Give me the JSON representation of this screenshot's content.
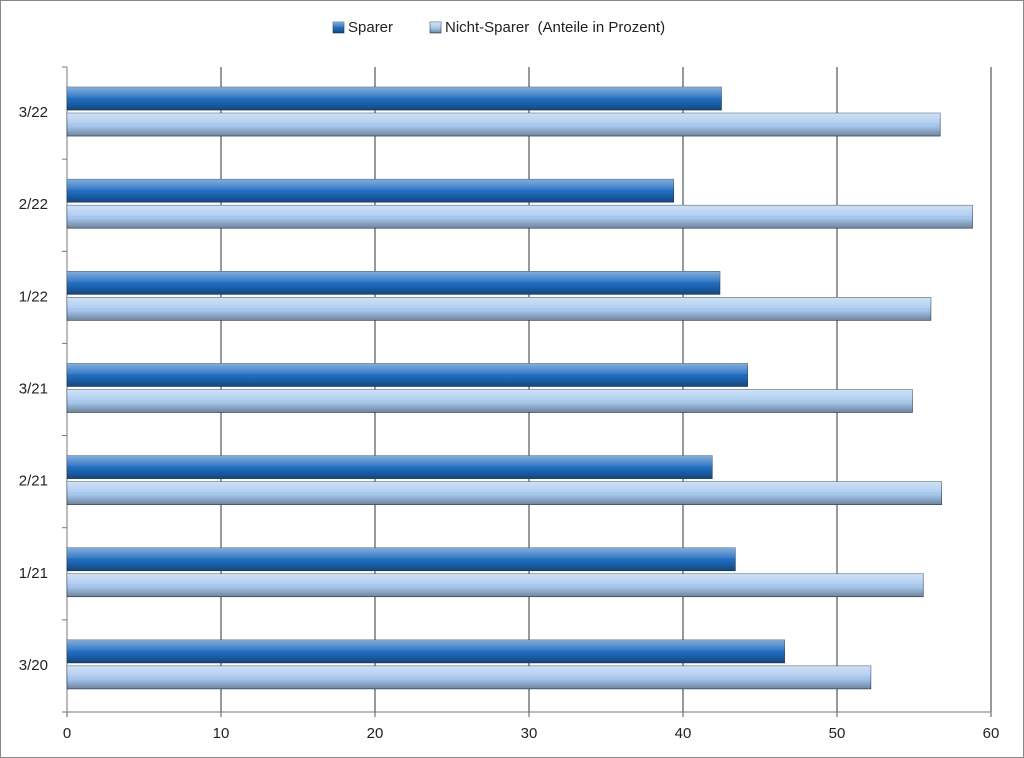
{
  "chart_data": {
    "type": "bar",
    "orientation": "horizontal",
    "categories": [
      "3/20",
      "1/21",
      "2/21",
      "3/21",
      "1/22",
      "2/22",
      "3/22"
    ],
    "series": [
      {
        "name": "Sparer",
        "color": "#1f6cc0",
        "values": [
          46.6,
          43.4,
          41.9,
          44.2,
          42.4,
          39.4,
          42.5
        ]
      },
      {
        "name": "Nicht-Sparer  (Anteile in Prozent)",
        "color": "#a8c9ef",
        "values": [
          52.2,
          55.6,
          56.8,
          54.9,
          56.1,
          58.8,
          56.7
        ]
      }
    ],
    "xlim": [
      0,
      60
    ],
    "xticks": [
      0,
      10,
      20,
      30,
      40,
      50,
      60
    ],
    "grid": true,
    "legend": "top"
  }
}
